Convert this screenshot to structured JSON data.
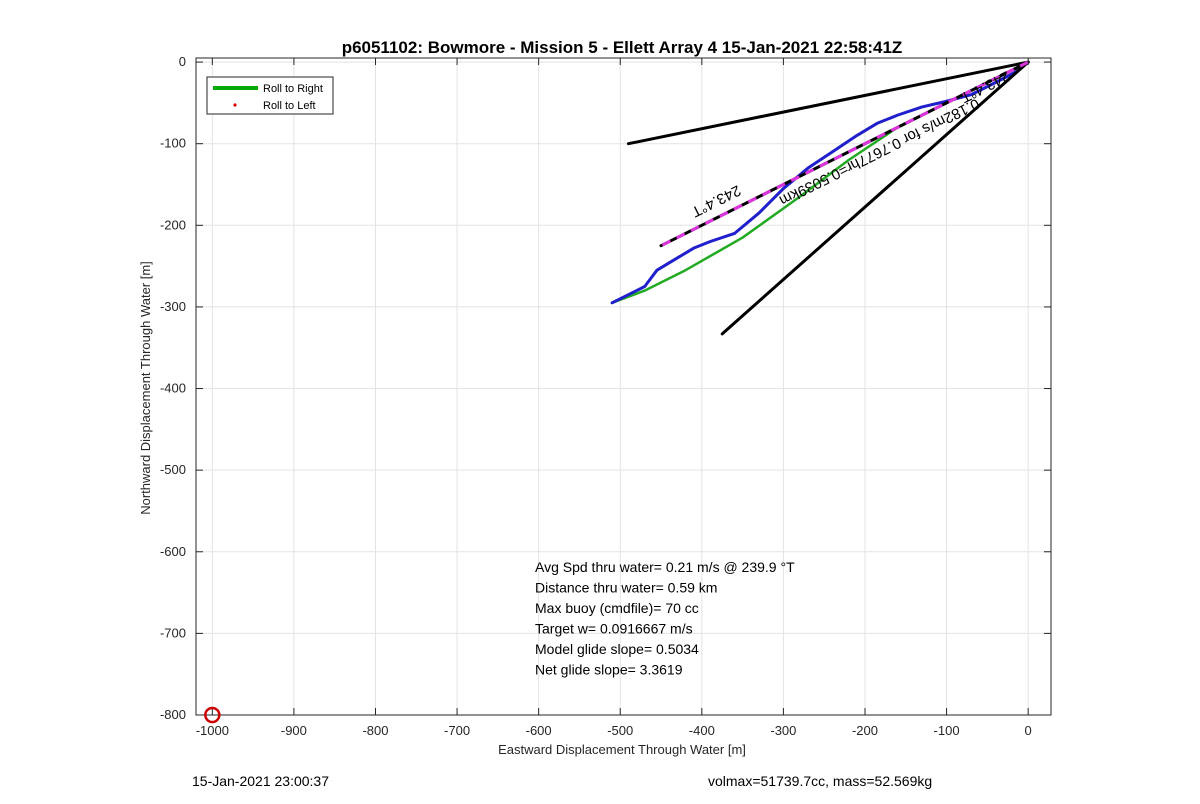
{
  "footer": {
    "timestamp": "15-Jan-2021 23:00:37",
    "volmax_mass": "volmax=51739.7cc, mass=52.569kg"
  },
  "chart_data": {
    "type": "line",
    "title": "p6051102: Bowmore - Mission 5 - Ellett Array 4 15-Jan-2021 22:58:41Z",
    "xlabel": "Eastward Displacement Through Water [m]",
    "ylabel": "Northward Displacement Through Water [m]",
    "xlim": [
      -1020,
      28
    ],
    "ylim": [
      -800,
      5
    ],
    "xticks": [
      -1000,
      -900,
      -800,
      -700,
      -600,
      -500,
      -400,
      -300,
      -200,
      -100,
      0
    ],
    "yticks": [
      0,
      -100,
      -200,
      -300,
      -400,
      -500,
      -600,
      -700,
      -800
    ],
    "grid": true,
    "legend": {
      "placement": "top-left",
      "entries": [
        {
          "label": "Roll to Right",
          "color": "#00aa00",
          "style": "line"
        },
        {
          "label": "Roll to Left",
          "color": "#dd0000",
          "style": "dot"
        }
      ]
    },
    "series": [
      {
        "name": "Roll to Right",
        "color": "#22aa22",
        "width": 2.5,
        "x": [
          0,
          -50,
          -110,
          -160,
          -220,
          -280,
          -350,
          -420,
          -470,
          -510
        ],
        "y": [
          0,
          -25,
          -55,
          -80,
          -120,
          -165,
          -215,
          -255,
          -280,
          -295
        ]
      },
      {
        "color": "#1f1fcc",
        "width": 3,
        "x": [
          0,
          -15,
          -40,
          -70,
          -100,
          -130,
          -160,
          -185,
          -210,
          -240,
          -270,
          -300,
          -330,
          -360,
          -390,
          -410,
          -430,
          -455,
          -470,
          -490,
          -510
        ],
        "y": [
          0,
          -12,
          -25,
          -40,
          -48,
          -55,
          -65,
          -75,
          -90,
          -110,
          -130,
          -155,
          -185,
          -210,
          -220,
          -228,
          -240,
          -255,
          -275,
          -285,
          -295
        ]
      },
      {
        "color": "#000000",
        "width": 3,
        "x": [
          0,
          -490
        ],
        "y": [
          0,
          -100
        ]
      },
      {
        "color": "#000000",
        "width": 3,
        "x": [
          0,
          -375
        ],
        "y": [
          0,
          -333
        ]
      },
      {
        "color": "#000000",
        "width": 3,
        "dashed_overlay": "#dd33dd",
        "x": [
          0,
          -450
        ],
        "y": [
          0,
          -225
        ]
      }
    ],
    "annotations": [
      {
        "text": "243.4°T",
        "x": -385,
        "y": -165,
        "rotate": 153.4
      },
      {
        "text": "0.182m/s for 0.7677hr=0.5039km",
        "x": -185,
        "y": -105,
        "rotate": 153.4
      },
      {
        "text": "243.4°T",
        "x": -55,
        "y": -25,
        "rotate": 153.4
      }
    ],
    "marker": {
      "x": -1000,
      "y": -800,
      "color": "#cc0000"
    },
    "stats": [
      "Avg Spd thru water=  0.21 m/s @ 239.9 °T",
      "Distance thru water=  0.59 km",
      "Max buoy (cmdfile)= 70 cc",
      "Target w= 0.0916667 m/s",
      "Model glide slope= 0.5034",
      "Net glide slope= 3.3619"
    ]
  }
}
